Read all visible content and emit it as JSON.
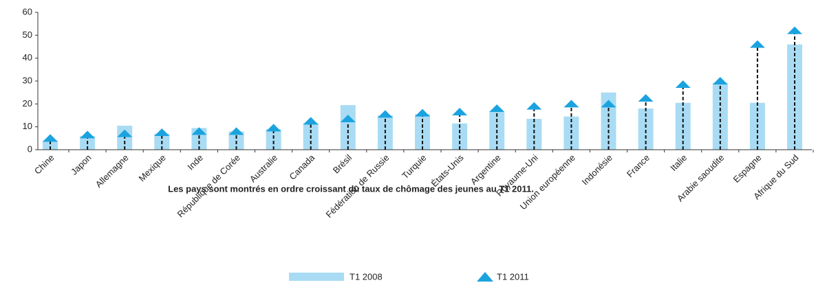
{
  "chart_data": {
    "type": "bar",
    "categories": [
      "Chine",
      "Japon",
      "Allemagne",
      "Mexique",
      "Inde",
      "République de Corée",
      "Australie",
      "Canada",
      "Brésil",
      "Fédération de Russie",
      "Turquie",
      "États-Unis",
      "Argentine",
      "Royaume-Uni",
      "Union européenne",
      "Indonésie",
      "France",
      "Italie",
      "Arabie saoudite",
      "Espagne",
      "Afrique du Sud"
    ],
    "series": [
      {
        "name": "T1 2008",
        "color": "#a9dcf4",
        "values": [
          4,
          6,
          10.5,
          7,
          9.5,
          8,
          9,
          11.5,
          19.5,
          15,
          15.5,
          11.5,
          16.5,
          13.5,
          14.5,
          25,
          18,
          20.5,
          29,
          20.5,
          46
        ]
      },
      {
        "name": "T1 2011",
        "color": "#1ba3e0",
        "values": [
          5,
          6.5,
          7,
          7.5,
          8,
          8,
          9.5,
          12.5,
          13.5,
          15.5,
          16,
          16.5,
          18,
          19,
          20,
          20,
          22.5,
          28.5,
          30,
          46,
          52
        ]
      }
    ],
    "note": "Les pays sont montrés en ordre croissant du taux de chômage des jeunes au T1 2011.",
    "ylim": [
      0,
      60
    ],
    "yticks": [
      0,
      10,
      20,
      30,
      40,
      50,
      60
    ]
  }
}
